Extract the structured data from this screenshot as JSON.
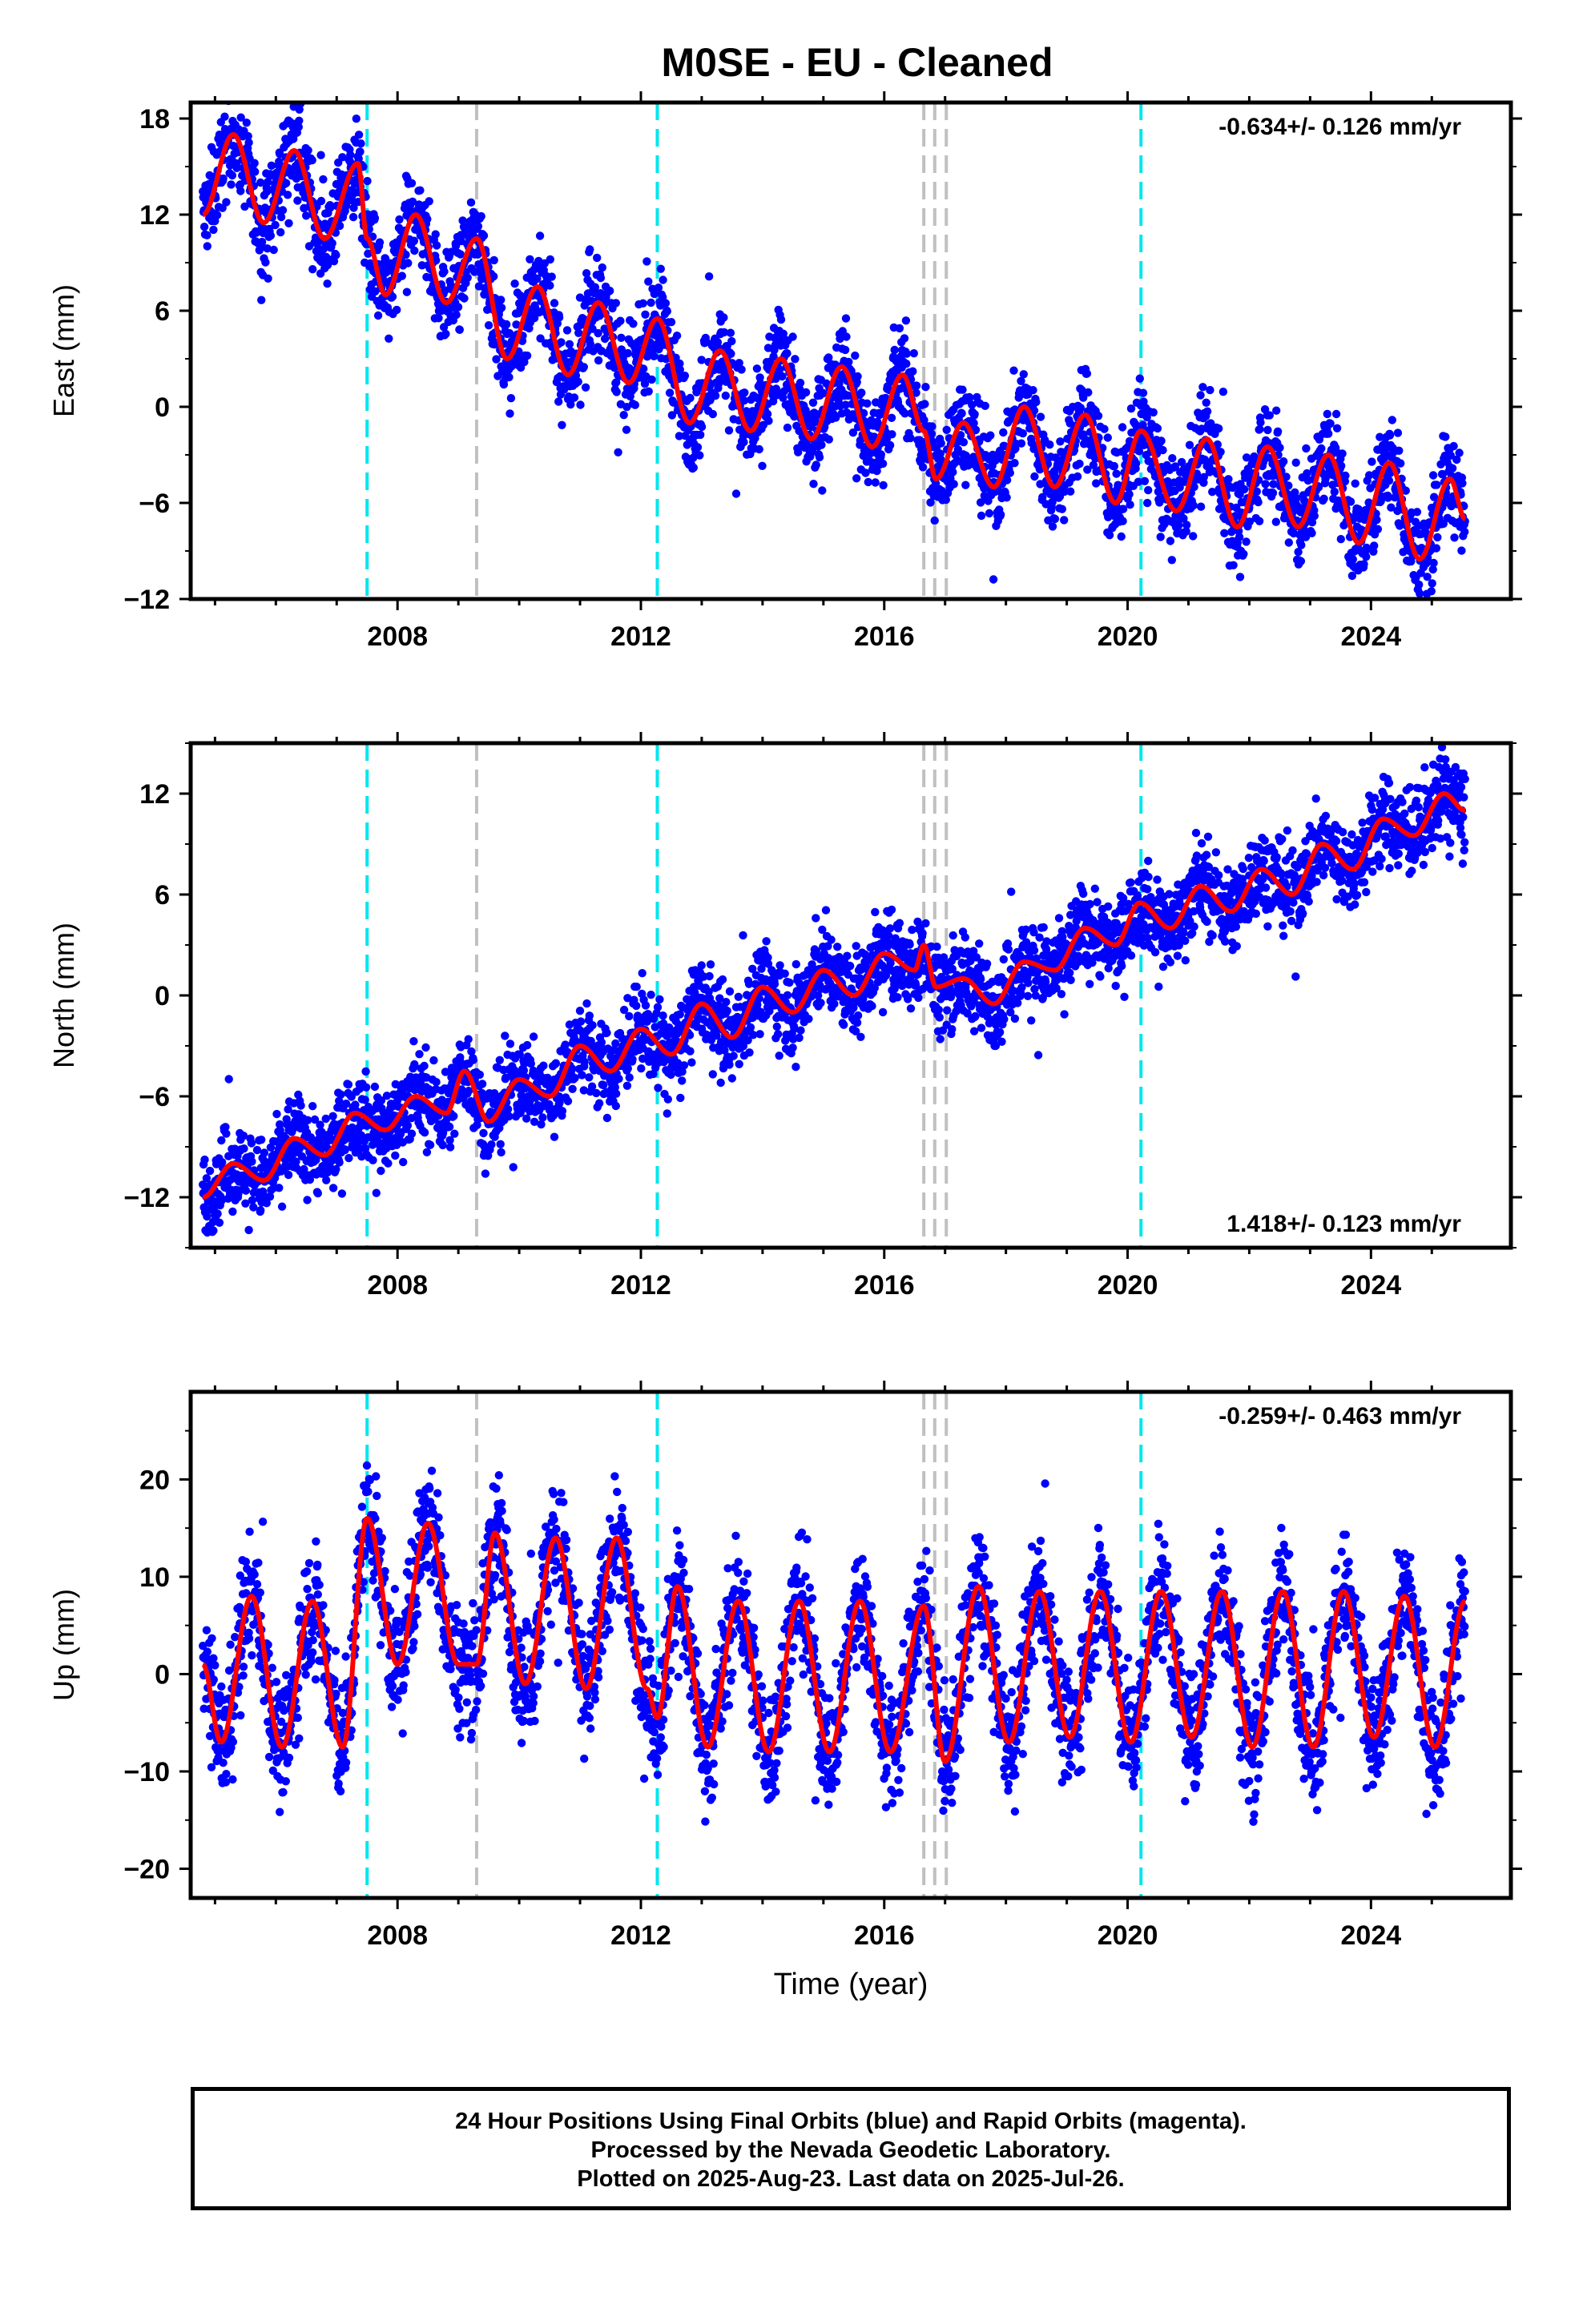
{
  "title": "M0SE  - EU - Cleaned",
  "colors": {
    "data": "#0000ff",
    "model": "#ff0000",
    "equipment_change": "#00e5ee",
    "other_event": "#c0c0c0",
    "frame": "#000000"
  },
  "x_axis": {
    "label": "Time (year)",
    "ticks": [
      2008,
      2012,
      2016,
      2020,
      2024
    ],
    "range": [
      2004.6,
      2026.3
    ]
  },
  "event_lines": {
    "equipment_change": [
      2007.5,
      2012.27,
      2020.22
    ],
    "other": [
      2009.3,
      2016.65,
      2016.83,
      2017.02
    ]
  },
  "footer": {
    "line1": "24 Hour Positions Using Final Orbits (blue) and Rapid Orbits (magenta).",
    "line2": "Processed by the Nevada Geodetic Laboratory.",
    "line3": "Plotted on 2025-Aug-23. Last data on 2025-Jul-26."
  },
  "chart_data": [
    {
      "type": "scatter",
      "ylabel": "East (mm)",
      "ylim": [
        -12,
        19
      ],
      "yticks": [
        -12,
        -6,
        0,
        6,
        12,
        18
      ],
      "rate": "-0.634+/- 0.126 mm/yr",
      "rate_position": "top-right",
      "model_points": [
        [
          2004.8,
          12
        ],
        [
          2005.3,
          17
        ],
        [
          2005.8,
          11.5
        ],
        [
          2006.3,
          16
        ],
        [
          2006.8,
          10.5
        ],
        [
          2007.35,
          15.2
        ],
        [
          2007.5,
          10.5
        ],
        [
          2007.8,
          7
        ],
        [
          2008.3,
          12
        ],
        [
          2008.8,
          6.5
        ],
        [
          2009.3,
          10.5
        ],
        [
          2009.8,
          3
        ],
        [
          2010.3,
          7.5
        ],
        [
          2010.8,
          2
        ],
        [
          2011.3,
          6.5
        ],
        [
          2011.8,
          1.5
        ],
        [
          2012.27,
          5.5
        ],
        [
          2012.8,
          -1
        ],
        [
          2013.3,
          3.5
        ],
        [
          2013.8,
          -1.5
        ],
        [
          2014.3,
          3
        ],
        [
          2014.8,
          -2
        ],
        [
          2015.3,
          2.5
        ],
        [
          2015.8,
          -2.5
        ],
        [
          2016.3,
          2
        ],
        [
          2016.65,
          -1.5
        ],
        [
          2016.85,
          -4.5
        ],
        [
          2017.3,
          -1
        ],
        [
          2017.8,
          -5
        ],
        [
          2018.3,
          0
        ],
        [
          2018.8,
          -5
        ],
        [
          2019.3,
          -0.5
        ],
        [
          2019.8,
          -6
        ],
        [
          2020.22,
          -1.5
        ],
        [
          2020.8,
          -6.5
        ],
        [
          2021.3,
          -2
        ],
        [
          2021.8,
          -7.5
        ],
        [
          2022.3,
          -2.5
        ],
        [
          2022.8,
          -7.5
        ],
        [
          2023.3,
          -3
        ],
        [
          2023.8,
          -8.5
        ],
        [
          2024.3,
          -3.5
        ],
        [
          2024.8,
          -9.5
        ],
        [
          2025.3,
          -4.5
        ],
        [
          2025.55,
          -7
        ]
      ],
      "data_band": {
        "amplitude": 2.6,
        "outlier": 4
      }
    },
    {
      "type": "scatter",
      "ylabel": "North (mm)",
      "ylim": [
        -15,
        15
      ],
      "yticks": [
        -12,
        -6,
        0,
        6,
        12
      ],
      "rate": "1.418+/- 0.123 mm/yr",
      "rate_position": "bottom-right",
      "model_points": [
        [
          2004.8,
          -12
        ],
        [
          2005.3,
          -10
        ],
        [
          2005.8,
          -11
        ],
        [
          2006.3,
          -8.5
        ],
        [
          2006.8,
          -9.5
        ],
        [
          2007.3,
          -7
        ],
        [
          2007.8,
          -8
        ],
        [
          2008.3,
          -6
        ],
        [
          2008.8,
          -7
        ],
        [
          2009.1,
          -4.5
        ],
        [
          2009.5,
          -7.5
        ],
        [
          2010.0,
          -5
        ],
        [
          2010.5,
          -6
        ],
        [
          2011.0,
          -3
        ],
        [
          2011.5,
          -4.5
        ],
        [
          2012.0,
          -2
        ],
        [
          2012.5,
          -3.5
        ],
        [
          2013.0,
          -0.5
        ],
        [
          2013.5,
          -2.5
        ],
        [
          2014.0,
          0.5
        ],
        [
          2014.5,
          -1
        ],
        [
          2015.0,
          1.5
        ],
        [
          2015.5,
          0
        ],
        [
          2016.0,
          2.5
        ],
        [
          2016.5,
          1.5
        ],
        [
          2016.65,
          3
        ],
        [
          2016.85,
          0.5
        ],
        [
          2017.3,
          1
        ],
        [
          2017.8,
          -0.5
        ],
        [
          2018.3,
          2
        ],
        [
          2018.8,
          1.5
        ],
        [
          2019.3,
          4
        ],
        [
          2019.8,
          3
        ],
        [
          2020.2,
          5.5
        ],
        [
          2020.7,
          4
        ],
        [
          2021.2,
          6.5
        ],
        [
          2021.7,
          5
        ],
        [
          2022.2,
          7.5
        ],
        [
          2022.7,
          6
        ],
        [
          2023.2,
          9
        ],
        [
          2023.7,
          7.5
        ],
        [
          2024.2,
          10.5
        ],
        [
          2024.7,
          9.5
        ],
        [
          2025.2,
          12
        ],
        [
          2025.55,
          11
        ]
      ],
      "data_band": {
        "amplitude": 2.2,
        "outlier": 3.5
      }
    },
    {
      "type": "scatter",
      "ylabel": "Up (mm)",
      "ylim": [
        -23,
        29
      ],
      "yticks": [
        -20,
        -10,
        0,
        10,
        20
      ],
      "rate": "-0.259+/- 0.463 mm/yr",
      "rate_position": "top-right",
      "model_points": [
        [
          2004.8,
          1
        ],
        [
          2005.1,
          -7
        ],
        [
          2005.6,
          8
        ],
        [
          2006.1,
          -7.5
        ],
        [
          2006.6,
          7.5
        ],
        [
          2007.1,
          -7.5
        ],
        [
          2007.5,
          16
        ],
        [
          2008.0,
          1
        ],
        [
          2008.5,
          15.5
        ],
        [
          2009.0,
          1
        ],
        [
          2009.3,
          1
        ],
        [
          2009.6,
          14.5
        ],
        [
          2010.1,
          -1
        ],
        [
          2010.6,
          14
        ],
        [
          2011.1,
          -1.5
        ],
        [
          2011.6,
          14
        ],
        [
          2012.1,
          -1.5
        ],
        [
          2012.27,
          -4.5
        ],
        [
          2012.6,
          9
        ],
        [
          2013.1,
          -7.5
        ],
        [
          2013.6,
          7.5
        ],
        [
          2014.1,
          -8
        ],
        [
          2014.6,
          7.5
        ],
        [
          2015.1,
          -8
        ],
        [
          2015.6,
          7.5
        ],
        [
          2016.1,
          -8
        ],
        [
          2016.65,
          7
        ],
        [
          2017.0,
          -9
        ],
        [
          2017.55,
          9
        ],
        [
          2018.05,
          -7
        ],
        [
          2018.55,
          8.5
        ],
        [
          2019.05,
          -6.5
        ],
        [
          2019.55,
          8.5
        ],
        [
          2020.05,
          -7
        ],
        [
          2020.55,
          8.5
        ],
        [
          2021.05,
          -6.5
        ],
        [
          2021.55,
          8.5
        ],
        [
          2022.05,
          -7.5
        ],
        [
          2022.55,
          8.5
        ],
        [
          2023.05,
          -7.5
        ],
        [
          2023.55,
          8.5
        ],
        [
          2024.05,
          -6.5
        ],
        [
          2024.55,
          8
        ],
        [
          2025.05,
          -7.5
        ],
        [
          2025.55,
          7.5
        ]
      ],
      "data_band": {
        "amplitude": 5.5,
        "outlier": 8
      }
    }
  ]
}
